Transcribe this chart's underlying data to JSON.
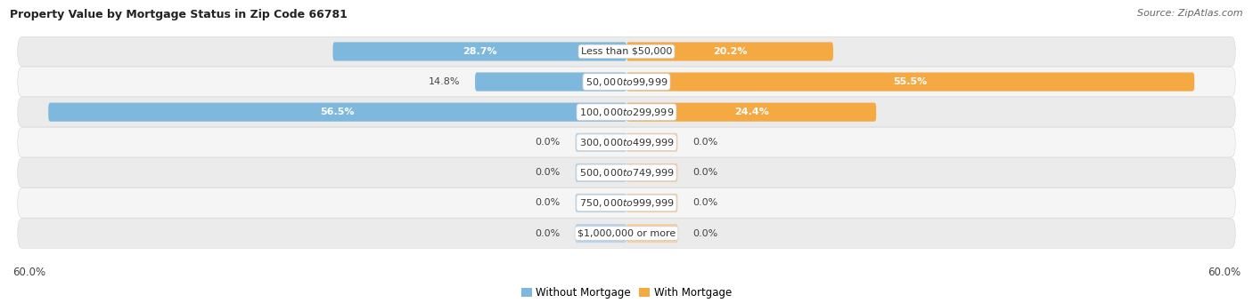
{
  "title": "Property Value by Mortgage Status in Zip Code 66781",
  "source": "Source: ZipAtlas.com",
  "categories": [
    "Less than $50,000",
    "$50,000 to $99,999",
    "$100,000 to $299,999",
    "$300,000 to $499,999",
    "$500,000 to $749,999",
    "$750,000 to $999,999",
    "$1,000,000 or more"
  ],
  "without_mortgage": [
    28.7,
    14.8,
    56.5,
    0.0,
    0.0,
    0.0,
    0.0
  ],
  "with_mortgage": [
    20.2,
    55.5,
    24.4,
    0.0,
    0.0,
    0.0,
    0.0
  ],
  "color_without": "#7eb8dd",
  "color_with": "#f5a942",
  "color_without_light": "#b8d4ea",
  "color_with_light": "#f5d0a0",
  "axis_limit": 60.0,
  "stub_size": 5.0,
  "title_fontsize": 9,
  "source_fontsize": 8,
  "legend_fontsize": 8.5,
  "bar_label_fontsize": 8,
  "category_fontsize": 8,
  "axis_label_fontsize": 8.5
}
